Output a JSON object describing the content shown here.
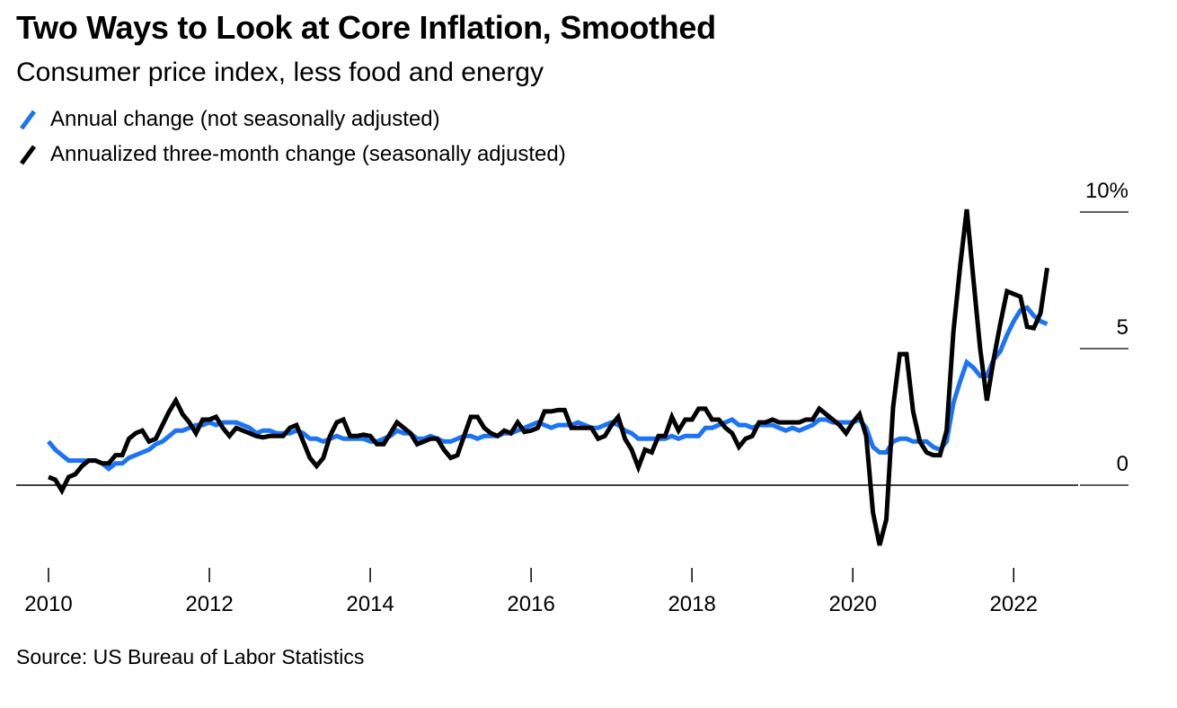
{
  "chart_data": {
    "type": "line",
    "title": "Two Ways to Look at Core Inflation, Smoothed",
    "subtitle": "Consumer price index, less food and energy",
    "source": "Source: US Bureau of Labor Statistics",
    "x_start": "2010-01",
    "x_frequency": "monthly",
    "x_ticks": [
      "2010",
      "2012",
      "2014",
      "2016",
      "2018",
      "2020",
      "2022"
    ],
    "y_ticks": [
      {
        "value": 0,
        "label": "0"
      },
      {
        "value": 5,
        "label": "5"
      },
      {
        "value": 10,
        "label": "10%"
      }
    ],
    "ylim": [
      -3,
      10
    ],
    "grid": false,
    "legend_position": "top-left",
    "series": [
      {
        "name": "Annual change (not seasonally adjusted)",
        "color": "#1a74f5",
        "values": [
          1.6,
          1.3,
          1.1,
          0.9,
          0.9,
          0.9,
          0.9,
          0.9,
          0.8,
          0.6,
          0.8,
          0.8,
          1.0,
          1.1,
          1.2,
          1.3,
          1.5,
          1.6,
          1.8,
          2.0,
          2.0,
          2.1,
          2.2,
          2.2,
          2.3,
          2.2,
          2.3,
          2.3,
          2.3,
          2.2,
          2.1,
          1.9,
          2.0,
          2.0,
          1.9,
          1.9,
          1.9,
          2.0,
          1.9,
          1.7,
          1.7,
          1.6,
          1.7,
          1.8,
          1.7,
          1.7,
          1.7,
          1.7,
          1.6,
          1.6,
          1.7,
          1.8,
          2.0,
          1.9,
          1.9,
          1.7,
          1.7,
          1.8,
          1.7,
          1.6,
          1.6,
          1.7,
          1.8,
          1.8,
          1.7,
          1.8,
          1.8,
          1.8,
          1.9,
          1.9,
          2.0,
          2.1,
          2.2,
          2.3,
          2.2,
          2.1,
          2.2,
          2.2,
          2.2,
          2.3,
          2.2,
          2.1,
          2.1,
          2.2,
          2.3,
          2.2,
          2.0,
          1.9,
          1.7,
          1.7,
          1.7,
          1.7,
          1.7,
          1.8,
          1.7,
          1.8,
          1.8,
          1.8,
          2.1,
          2.1,
          2.2,
          2.3,
          2.4,
          2.2,
          2.2,
          2.1,
          2.2,
          2.2,
          2.2,
          2.1,
          2.0,
          2.1,
          2.0,
          2.1,
          2.2,
          2.4,
          2.4,
          2.3,
          2.3,
          2.3,
          2.3,
          2.4,
          2.1,
          1.4,
          1.2,
          1.2,
          1.6,
          1.7,
          1.7,
          1.6,
          1.6,
          1.6,
          1.4,
          1.3,
          1.6,
          3.0,
          3.8,
          4.5,
          4.3,
          4.0,
          4.0,
          4.6,
          4.9,
          5.5,
          6.0,
          6.4,
          6.5,
          6.2,
          6.0,
          5.9
        ]
      },
      {
        "name": "Annualized three-month change (seasonally adjusted)",
        "color": "#000000",
        "values": [
          0.3,
          0.2,
          -0.2,
          0.3,
          0.4,
          0.7,
          0.9,
          0.9,
          0.8,
          0.8,
          1.1,
          1.1,
          1.7,
          1.9,
          2.0,
          1.6,
          1.7,
          2.2,
          2.7,
          3.1,
          2.6,
          2.3,
          1.9,
          2.4,
          2.4,
          2.5,
          2.1,
          1.8,
          2.1,
          2.0,
          1.9,
          1.8,
          1.75,
          1.8,
          1.8,
          1.8,
          2.1,
          2.2,
          1.6,
          1.0,
          0.7,
          1.0,
          1.8,
          2.3,
          2.4,
          1.8,
          1.8,
          1.85,
          1.8,
          1.5,
          1.5,
          1.9,
          2.3,
          2.1,
          1.9,
          1.5,
          1.6,
          1.7,
          1.7,
          1.3,
          1.0,
          1.1,
          1.8,
          2.5,
          2.5,
          2.1,
          1.9,
          1.8,
          2.0,
          1.9,
          2.3,
          1.95,
          2.0,
          2.1,
          2.7,
          2.7,
          2.75,
          2.75,
          2.1,
          2.1,
          2.1,
          2.1,
          1.7,
          1.8,
          2.2,
          2.5,
          1.7,
          1.3,
          0.65,
          1.3,
          1.2,
          1.8,
          1.8,
          2.5,
          2.0,
          2.4,
          2.4,
          2.8,
          2.8,
          2.4,
          2.4,
          2.1,
          1.9,
          1.4,
          1.7,
          1.8,
          2.3,
          2.3,
          2.4,
          2.3,
          2.3,
          2.3,
          2.3,
          2.4,
          2.4,
          2.8,
          2.6,
          2.4,
          2.2,
          1.9,
          2.3,
          2.6,
          1.8,
          -1.0,
          -2.2,
          -1.25,
          2.85,
          4.8,
          4.8,
          2.7,
          1.6,
          1.2,
          1.1,
          1.1,
          2.0,
          5.6,
          8.0,
          10.1,
          7.5,
          5.0,
          3.1,
          4.6,
          5.9,
          7.1,
          7.0,
          6.9,
          5.8,
          5.75,
          6.3,
          7.95
        ]
      }
    ]
  }
}
